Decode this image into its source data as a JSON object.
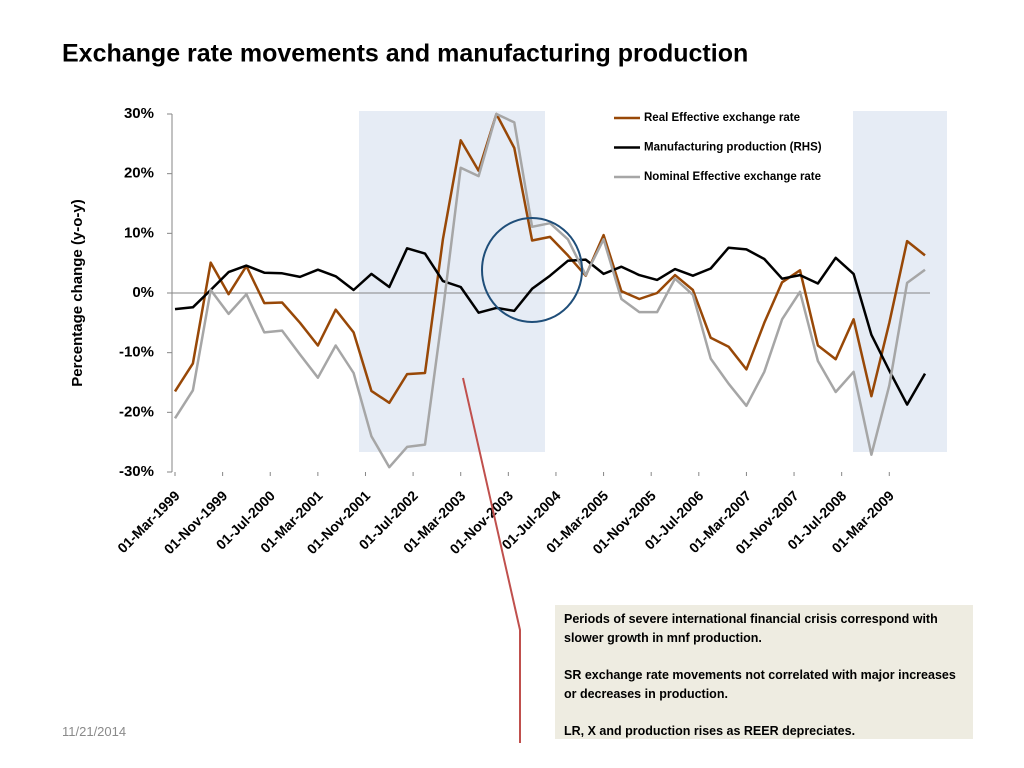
{
  "chart_data": {
    "type": "line",
    "title": "Exchange rate movements and manufacturing production",
    "y_label": "Percentage change (y-o-y)",
    "x": [
      "1999-03-01",
      "1999-06-01",
      "1999-09-01",
      "1999-12-01",
      "2000-03-01",
      "2000-06-01",
      "2000-09-01",
      "2000-12-01",
      "2001-03-01",
      "2001-06-01",
      "2001-09-01",
      "2001-12-01",
      "2002-03-01",
      "2002-06-01",
      "2002-09-01",
      "2002-12-01",
      "2003-03-01",
      "2003-06-01",
      "2003-09-01",
      "2003-12-01",
      "2004-03-01",
      "2004-06-01",
      "2004-09-01",
      "2004-12-01",
      "2005-03-01",
      "2005-06-01",
      "2005-09-01",
      "2005-12-01",
      "2006-03-01",
      "2006-06-01",
      "2006-09-01",
      "2006-12-01",
      "2007-03-01",
      "2007-06-01",
      "2007-09-01",
      "2007-12-01",
      "2008-03-01",
      "2008-06-01",
      "2008-09-01",
      "2008-12-01",
      "2009-03-01",
      "2009-06-01",
      "2009-09-01"
    ],
    "xlim": [
      "1999-03-01",
      "2009-09-01"
    ],
    "xticks": [
      {
        "value": "1999-03-01",
        "label": "01-Mar-1999"
      },
      {
        "value": "1999-11-01",
        "label": "01-Nov-1999"
      },
      {
        "value": "2000-07-01",
        "label": "01-Jul-2000"
      },
      {
        "value": "2001-03-01",
        "label": "01-Mar-2001"
      },
      {
        "value": "2001-11-01",
        "label": "01-Nov-2001"
      },
      {
        "value": "2002-07-01",
        "label": "01-Jul-2002"
      },
      {
        "value": "2003-03-01",
        "label": "01-Mar-2003"
      },
      {
        "value": "2003-11-01",
        "label": "01-Nov-2003"
      },
      {
        "value": "2004-07-01",
        "label": "01-Jul-2004"
      },
      {
        "value": "2005-03-01",
        "label": "01-Mar-2005"
      },
      {
        "value": "2005-11-01",
        "label": "01-Nov-2005"
      },
      {
        "value": "2006-07-01",
        "label": "01-Jul-2006"
      },
      {
        "value": "2007-03-01",
        "label": "01-Mar-2007"
      },
      {
        "value": "2007-11-01",
        "label": "01-Nov-2007"
      },
      {
        "value": "2008-07-01",
        "label": "01-Jul-2008"
      },
      {
        "value": "2009-03-01",
        "label": "01-Mar-2009"
      }
    ],
    "ylim": [
      -30,
      30
    ],
    "yticks": [
      {
        "value": 30,
        "label": "30%"
      },
      {
        "value": 20,
        "label": "20%"
      },
      {
        "value": 10,
        "label": "10%"
      },
      {
        "value": 0,
        "label": "0%"
      },
      {
        "value": -10,
        "label": "-10%"
      },
      {
        "value": -20,
        "label": "-20%"
      },
      {
        "value": -30,
        "label": "-30%"
      }
    ],
    "legend": "top-right",
    "series": [
      {
        "name": "Real Effective exchange rate",
        "color": "#984807",
        "values": [
          -16.5,
          -11.8,
          5.1,
          -0.2,
          4.5,
          -1.7,
          -1.6,
          -5,
          -8.8,
          -2.8,
          -6.6,
          -16.4,
          -18.4,
          -13.6,
          -13.4,
          9,
          25.6,
          20.5,
          30,
          24.3,
          8.8,
          9.4,
          6.3,
          2.9,
          9.7,
          0.3,
          -1,
          0,
          3,
          0.5,
          -7.5,
          -9,
          -12.8,
          -5,
          1.8,
          3.8,
          -8.8,
          -11.1,
          -4.4,
          -17.3,
          -5,
          8.7,
          6.3
        ]
      },
      {
        "name": "Manufacturing production (RHS)",
        "color": "#000000",
        "values": [
          -2.7,
          -2.4,
          0.5,
          3.5,
          4.6,
          3.4,
          3.3,
          2.7,
          3.9,
          2.8,
          0.5,
          3.2,
          1,
          7.5,
          6.6,
          2,
          1,
          -3.3,
          -2.5,
          -3,
          0.7,
          2.9,
          5.4,
          5.6,
          3.2,
          4.4,
          3,
          2.2,
          4,
          2.9,
          4.1,
          7.6,
          7.3,
          5.7,
          2.4,
          3,
          1.6,
          5.9,
          3.2,
          -7,
          -13,
          -18.7,
          -13.5
        ]
      },
      {
        "name": "Nominal Effective exchange rate",
        "color": "#a6a6a6",
        "values": [
          -21,
          -16.3,
          0.5,
          -3.5,
          -0.2,
          -6.6,
          -6.3,
          -10.3,
          -14.2,
          -8.8,
          -13.4,
          -24,
          -29.2,
          -25.8,
          -25.4,
          -3,
          21,
          19.6,
          30,
          28.6,
          11.1,
          11.7,
          9,
          3,
          9,
          -1,
          -3.2,
          -3.2,
          2.4,
          -0.3,
          -11,
          -15.2,
          -18.9,
          -13.2,
          -4.4,
          0.2,
          -11.4,
          -16.6,
          -13.2,
          -27.1,
          -15.5,
          1.7,
          3.9
        ]
      }
    ]
  },
  "note": {
    "paragraphs": [
      "Periods of severe international financial crisis correspond with slower growth in mnf production.",
      "SR exchange rate movements not correlated with major increases or decreases in production.",
      "LR, X and production rises as REER depreciates."
    ]
  },
  "footer": {
    "date": "11/21/2014"
  }
}
